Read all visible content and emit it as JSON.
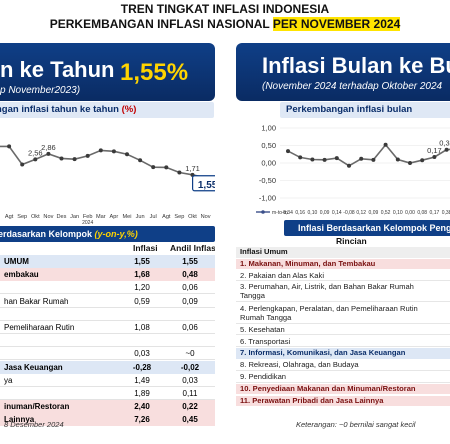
{
  "header": {
    "line1": "TREN TINGKAT INFLASI INDONESIA",
    "line2_prefix": "PERKEMBANGAN INFLASI NASIONAL ",
    "line2_highlight": "PER NOVEMBER 2024"
  },
  "left": {
    "banner_title": "n ke Tahun",
    "banner_sub": "p November2023)",
    "banner_value": "1,55%",
    "subtitle_prefix": "ngan inflasi tahun ke tahun ",
    "subtitle_pct": "(%)",
    "table_title_prefix": "erdasarkan Kelompok ",
    "table_title_yoy": "(y-on-y,%)",
    "col_inflasi": "Inflasi",
    "col_andil": "Andil Inflasi",
    "rows": [
      {
        "name": "UMUM",
        "inflasi": "1,55",
        "andil": "1,55",
        "style": "blue",
        "bold": true
      },
      {
        "name": "embakau",
        "inflasi": "1,68",
        "andil": "0,48",
        "style": "pink",
        "bold": true
      },
      {
        "name": "",
        "inflasi": "1,20",
        "andil": "0,06",
        "style": "white",
        "bold": false
      },
      {
        "name": "han Bakar Rumah",
        "inflasi": "0,59",
        "andil": "0,09",
        "style": "white",
        "bold": false
      },
      {
        "name": "",
        "inflasi": "",
        "andil": "",
        "style": "white",
        "bold": false
      },
      {
        "name": "Pemeliharaan Rutin",
        "inflasi": "1,08",
        "andil": "0,06",
        "style": "white",
        "bold": false
      },
      {
        "name": "",
        "inflasi": "",
        "andil": "",
        "style": "white",
        "bold": false
      },
      {
        "name": "",
        "inflasi": "0,03",
        "andil": "~0",
        "style": "white",
        "bold": false
      },
      {
        "name": "Jasa Keuangan",
        "inflasi": "-0,28",
        "andil": "-0,02",
        "style": "blue",
        "bold": true
      },
      {
        "name": "ya",
        "inflasi": "1,49",
        "andil": "0,03",
        "style": "white",
        "bold": false
      },
      {
        "name": "",
        "inflasi": "1,89",
        "andil": "0,11",
        "style": "white",
        "bold": false
      },
      {
        "name": "inuman/Restoran",
        "inflasi": "2,40",
        "andil": "0,22",
        "style": "pink",
        "bold": true
      },
      {
        "name": "Lainnya",
        "inflasi": "7,26",
        "andil": "0,45",
        "style": "pink",
        "bold": true
      }
    ],
    "footer": "8 Desember 2024"
  },
  "right": {
    "banner_title": "Inflasi Bulan ke Bula",
    "banner_sub": "(November 2024 terhadap Oktober 2024",
    "subtitle": "Perkembangan inflasi bulan",
    "table_title": "Inflasi Berdasarkan Kelompok Peng",
    "col_rincian": "Rincian",
    "rows": [
      {
        "text": "Inflasi Umum",
        "style": "grey"
      },
      {
        "text": "1.  Makanan, Minuman, dan Tembakau",
        "style": "pink"
      },
      {
        "text": "2.  Pakaian dan Alas Kaki",
        "style": "white"
      },
      {
        "text": "3.  Perumahan, Air, Listrik, dan Bahan Bakar Rumah",
        "text2": "     Tangga",
        "style": "white"
      },
      {
        "text": "4.  Perlengkapan, Peralatan, dan Pemeliharaan Rutin",
        "text2": "     Rumah Tangga",
        "style": "white"
      },
      {
        "text": "5.  Kesehatan",
        "style": "white"
      },
      {
        "text": "6.  Transportasi",
        "style": "white"
      },
      {
        "text": "7.  Informasi, Komunikasi, dan Jasa Keuangan",
        "style": "blue"
      },
      {
        "text": "8.  Rekreasi, Olahraga, dan Budaya",
        "style": "white"
      },
      {
        "text": "9.  Pendidikan",
        "style": "white"
      },
      {
        "text": "10. Penyediaan Makanan dan Minuman/Restoran",
        "style": "pink"
      },
      {
        "text": "11. Perawatan Pribadi dan Jasa Lainnya",
        "style": "pink"
      }
    ],
    "footer": "Keterangan: ~0 bernilai sangat kecil"
  },
  "chart_data": [
    {
      "type": "line",
      "title": "",
      "x_year_label": "2024",
      "categories": [
        "",
        "Agt",
        "Sep",
        "Okt",
        "Nov",
        "Des",
        "Jan",
        "Feb",
        "Mar",
        "Apr",
        "Mei",
        "Jun",
        "Jul",
        "Agt",
        "Sep",
        "Okt",
        "Nov"
      ],
      "values": [
        3.27,
        3.27,
        2.28,
        2.56,
        2.86,
        2.61,
        2.57,
        2.75,
        3.05,
        3.0,
        2.84,
        2.51,
        2.13,
        2.12,
        1.84,
        1.71,
        1.55
      ],
      "value_labels": [
        "3,27",
        "3,27",
        "2,28",
        "2,56",
        "2,86",
        "2,61",
        "2,57",
        "2,75",
        "3,05",
        "3,00",
        "2,84",
        "2,51",
        "2,13",
        "2,12",
        "1,84",
        "1,71",
        "1,55"
      ],
      "annotations": [
        "2,56",
        "2,86",
        "1,71",
        "1,55"
      ],
      "ylim": [
        0,
        4.5
      ]
    },
    {
      "type": "line",
      "title": "",
      "y_ticks": [
        "1,00",
        "0,50",
        "0,00",
        "-0,50",
        "-1,00"
      ],
      "ylim": [
        -1.0,
        1.0
      ],
      "legend": "m-to-m",
      "values": [
        0.34,
        0.16,
        0.1,
        0.09,
        0.14,
        -0.08,
        0.12,
        0.09,
        0.52,
        0.1,
        0.0,
        0.08,
        0.17,
        0.38,
        0.41,
        0.04
      ],
      "value_labels": [
        "0,34",
        "0,16",
        "0,10",
        "0,09",
        "0,14",
        "-0,08",
        "0,12",
        "0,09",
        "0,52",
        "0,10",
        "0,00",
        "0,08",
        "0,17",
        "0,38",
        "0,41",
        "0,04"
      ],
      "annotations": [
        "0,17",
        "0,38"
      ]
    }
  ]
}
